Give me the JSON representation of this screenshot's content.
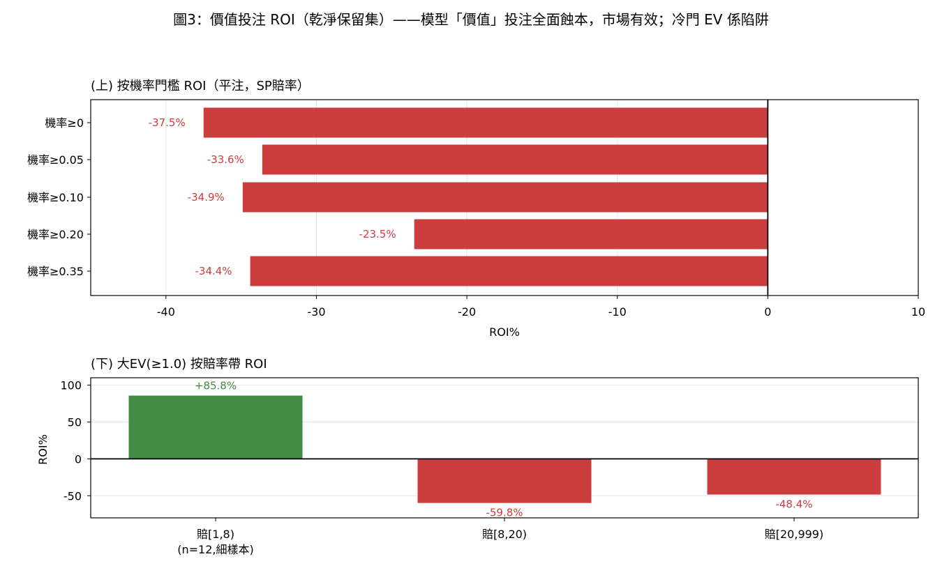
{
  "figure": {
    "title": "圖3：價值投注 ROI（乾淨保留集）——模型「價值」投注全面蝕本，市場有效；冷門 EV 係陷阱"
  },
  "colors": {
    "negative": "#cc3d3d",
    "positive": "#428a45",
    "grid": "#e6e6e6",
    "axis": "#000000"
  },
  "chart_data": [
    {
      "type": "bar",
      "orientation": "horizontal",
      "title": "(上) 按機率門檻 ROI（平注，SP賠率）",
      "xlabel": "ROI%",
      "ylabel": "",
      "xlim": [
        -45,
        10
      ],
      "xticks": [
        -40,
        -30,
        -20,
        -10,
        0,
        10
      ],
      "grid": "vertical",
      "categories": [
        "機率≥0",
        "機率≥0.05",
        "機率≥0.10",
        "機率≥0.20",
        "機率≥0.35"
      ],
      "values": [
        -37.5,
        -33.6,
        -34.9,
        -23.5,
        -34.4
      ],
      "labels": [
        "-37.5%",
        "-33.6%",
        "-34.9%",
        "-23.5%",
        "-34.4%"
      ]
    },
    {
      "type": "bar",
      "orientation": "vertical",
      "title": "(下) 大EV(≥1.0) 按賠率帶 ROI",
      "xlabel": "",
      "ylabel": "ROI%",
      "ylim": [
        -80,
        110
      ],
      "yticks": [
        -50,
        0,
        50,
        100
      ],
      "grid": "horizontal",
      "categories": [
        [
          "賠[1,8)",
          "(n=12,細樣本)"
        ],
        [
          "賠[8,20)"
        ],
        [
          "賠[20,999)"
        ]
      ],
      "values": [
        85.8,
        -59.8,
        -48.4
      ],
      "labels": [
        "+85.8%",
        "-59.8%",
        "-48.4%"
      ]
    }
  ]
}
